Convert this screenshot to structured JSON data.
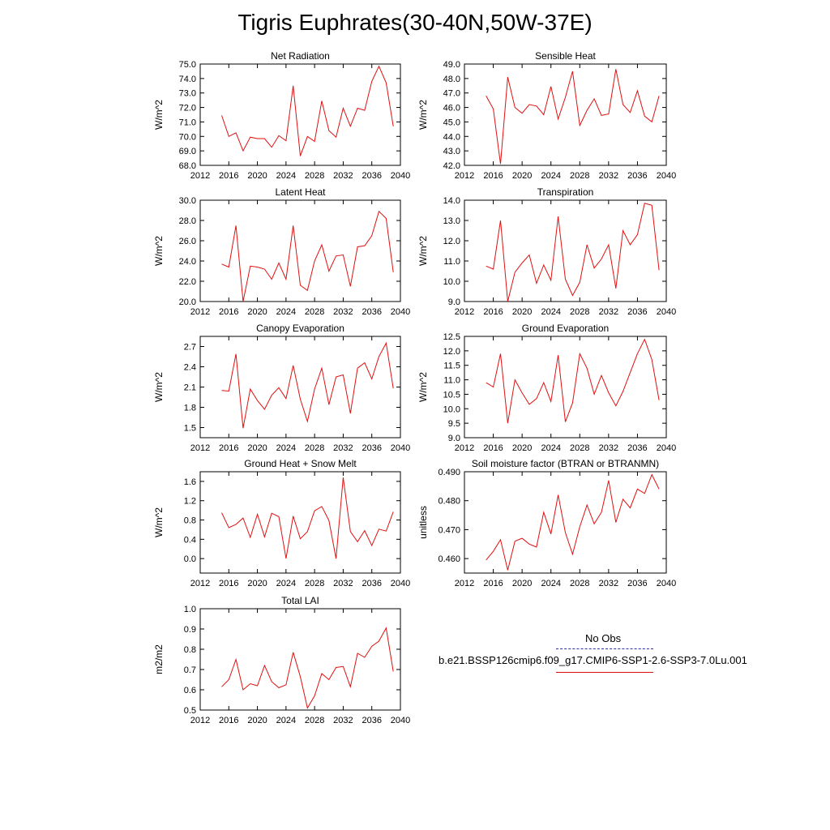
{
  "figure": {
    "title": "Tigris Euphrates(30-40N,50W-37E)"
  },
  "legend": {
    "obs_label": "No Obs",
    "obs_color": "#3030a0",
    "model_label": "b.e21.BSSP126cmip6.f09_g17.CMIP6-SSP1-2.6-SSP3-7.0Lu.001",
    "model_color": "#e01010"
  },
  "chart_data": [
    {
      "type": "line",
      "title": "Net Radiation",
      "ylabel": "W/m^2",
      "xlabel": "",
      "xlim": [
        2012,
        2040
      ],
      "ylim": [
        68,
        75
      ],
      "grid": false,
      "xticks": [
        2012,
        2016,
        2020,
        2024,
        2028,
        2032,
        2036,
        2040
      ],
      "yticks": [
        68.0,
        69.0,
        70.0,
        71.0,
        72.0,
        73.0,
        74.0,
        75.0
      ],
      "ydec": 1,
      "x": [
        2015,
        2016,
        2017,
        2018,
        2019,
        2020,
        2021,
        2022,
        2023,
        2024,
        2025,
        2026,
        2027,
        2028,
        2029,
        2030,
        2031,
        2032,
        2033,
        2034,
        2035,
        2036,
        2037,
        2038,
        2039
      ],
      "series": [
        {
          "color": "#e01010",
          "values": [
            71.45,
            70.0,
            70.25,
            69.0,
            69.95,
            69.85,
            69.85,
            69.25,
            70.05,
            69.7,
            73.5,
            68.65,
            70.0,
            69.65,
            72.45,
            70.4,
            69.95,
            71.95,
            70.7,
            71.95,
            71.8,
            73.8,
            74.85,
            73.7,
            70.7
          ]
        }
      ]
    },
    {
      "type": "line",
      "title": "Sensible Heat",
      "ylabel": "W/m^2",
      "xlabel": "",
      "xlim": [
        2012,
        2040
      ],
      "ylim": [
        42,
        49
      ],
      "grid": false,
      "xticks": [
        2012,
        2016,
        2020,
        2024,
        2028,
        2032,
        2036,
        2040
      ],
      "yticks": [
        42.0,
        43.0,
        44.0,
        45.0,
        46.0,
        47.0,
        48.0,
        49.0
      ],
      "ydec": 1,
      "x": [
        2015,
        2016,
        2017,
        2018,
        2019,
        2020,
        2021,
        2022,
        2023,
        2024,
        2025,
        2026,
        2027,
        2028,
        2029,
        2030,
        2031,
        2032,
        2033,
        2034,
        2035,
        2036,
        2037,
        2038,
        2039
      ],
      "series": [
        {
          "color": "#e01010",
          "values": [
            46.8,
            45.9,
            42.1,
            48.1,
            46.0,
            45.6,
            46.2,
            46.1,
            45.5,
            47.45,
            45.2,
            46.7,
            48.5,
            44.75,
            45.8,
            46.6,
            45.45,
            45.55,
            48.65,
            46.2,
            45.65,
            47.15,
            45.4,
            45.0,
            46.8
          ]
        }
      ]
    },
    {
      "type": "line",
      "title": "Latent Heat",
      "ylabel": "W/m^2",
      "xlabel": "",
      "xlim": [
        2012,
        2040
      ],
      "ylim": [
        20,
        30
      ],
      "grid": false,
      "xticks": [
        2012,
        2016,
        2020,
        2024,
        2028,
        2032,
        2036,
        2040
      ],
      "yticks": [
        20.0,
        22.0,
        24.0,
        26.0,
        28.0,
        30.0
      ],
      "ydec": 1,
      "x": [
        2015,
        2016,
        2017,
        2018,
        2019,
        2020,
        2021,
        2022,
        2023,
        2024,
        2025,
        2026,
        2027,
        2028,
        2029,
        2030,
        2031,
        2032,
        2033,
        2034,
        2035,
        2036,
        2037,
        2038,
        2039
      ],
      "series": [
        {
          "color": "#e01010",
          "values": [
            23.7,
            23.4,
            27.5,
            20.0,
            23.5,
            23.4,
            23.2,
            22.2,
            23.8,
            22.2,
            27.5,
            21.6,
            21.1,
            24.0,
            25.6,
            23.0,
            24.5,
            24.6,
            21.5,
            25.4,
            25.5,
            26.5,
            28.9,
            28.2,
            22.9
          ]
        }
      ]
    },
    {
      "type": "line",
      "title": "Transpiration",
      "ylabel": "W/m^2",
      "xlabel": "",
      "xlim": [
        2012,
        2040
      ],
      "ylim": [
        9,
        14
      ],
      "grid": false,
      "xticks": [
        2012,
        2016,
        2020,
        2024,
        2028,
        2032,
        2036,
        2040
      ],
      "yticks": [
        9.0,
        10.0,
        11.0,
        12.0,
        13.0,
        14.0
      ],
      "ydec": 1,
      "x": [
        2015,
        2016,
        2017,
        2018,
        2019,
        2020,
        2021,
        2022,
        2023,
        2024,
        2025,
        2026,
        2027,
        2028,
        2029,
        2030,
        2031,
        2032,
        2033,
        2034,
        2035,
        2036,
        2037,
        2038,
        2039
      ],
      "series": [
        {
          "color": "#e01010",
          "values": [
            10.75,
            10.6,
            13.0,
            9.0,
            10.45,
            10.9,
            11.3,
            9.9,
            10.8,
            10.05,
            13.2,
            10.1,
            9.3,
            9.95,
            11.8,
            10.65,
            11.1,
            11.8,
            9.65,
            12.5,
            11.8,
            12.3,
            13.85,
            13.75,
            10.55
          ]
        }
      ]
    },
    {
      "type": "line",
      "title": "Canopy Evaporation",
      "ylabel": "W/m^2",
      "xlabel": "",
      "xlim": [
        2012,
        2040
      ],
      "ylim": [
        1.35,
        2.85
      ],
      "grid": false,
      "xticks": [
        2012,
        2016,
        2020,
        2024,
        2028,
        2032,
        2036,
        2040
      ],
      "yticks": [
        1.5,
        1.8,
        2.1,
        2.4,
        2.7
      ],
      "ydec": 1,
      "x": [
        2015,
        2016,
        2017,
        2018,
        2019,
        2020,
        2021,
        2022,
        2023,
        2024,
        2025,
        2026,
        2027,
        2028,
        2029,
        2030,
        2031,
        2032,
        2033,
        2034,
        2035,
        2036,
        2037,
        2038,
        2039
      ],
      "series": [
        {
          "color": "#e01010",
          "values": [
            2.05,
            2.04,
            2.59,
            1.49,
            2.07,
            1.9,
            1.77,
            1.98,
            2.09,
            1.93,
            2.42,
            1.92,
            1.59,
            2.07,
            2.38,
            1.84,
            2.25,
            2.28,
            1.71,
            2.38,
            2.46,
            2.22,
            2.55,
            2.75,
            2.08
          ]
        }
      ]
    },
    {
      "type": "line",
      "title": "Ground Evaporation",
      "ylabel": "W/m^2",
      "xlabel": "",
      "xlim": [
        2012,
        2040
      ],
      "ylim": [
        9,
        12.5
      ],
      "grid": false,
      "xticks": [
        2012,
        2016,
        2020,
        2024,
        2028,
        2032,
        2036,
        2040
      ],
      "yticks": [
        9.0,
        9.5,
        10.0,
        10.5,
        11.0,
        11.5,
        12.0,
        12.5
      ],
      "ydec": 1,
      "x": [
        2015,
        2016,
        2017,
        2018,
        2019,
        2020,
        2021,
        2022,
        2023,
        2024,
        2025,
        2026,
        2027,
        2028,
        2029,
        2030,
        2031,
        2032,
        2033,
        2034,
        2035,
        2036,
        2037,
        2038,
        2039
      ],
      "series": [
        {
          "color": "#e01010",
          "values": [
            10.9,
            10.75,
            11.9,
            9.5,
            11.0,
            10.55,
            10.15,
            10.35,
            10.9,
            10.25,
            11.85,
            9.55,
            10.2,
            11.9,
            11.4,
            10.5,
            11.15,
            10.55,
            10.1,
            10.6,
            11.25,
            11.9,
            12.4,
            11.7,
            10.3
          ]
        }
      ]
    },
    {
      "type": "line",
      "title": "Ground Heat + Snow Melt",
      "ylabel": "W/m^2",
      "xlabel": "",
      "xlim": [
        2012,
        2040
      ],
      "ylim": [
        -0.3,
        1.8
      ],
      "grid": false,
      "xticks": [
        2012,
        2016,
        2020,
        2024,
        2028,
        2032,
        2036,
        2040
      ],
      "yticks": [
        0.0,
        0.4,
        0.8,
        1.2,
        1.6
      ],
      "ydec": 1,
      "x": [
        2015,
        2016,
        2017,
        2018,
        2019,
        2020,
        2021,
        2022,
        2023,
        2024,
        2025,
        2026,
        2027,
        2028,
        2029,
        2030,
        2031,
        2032,
        2033,
        2034,
        2035,
        2036,
        2037,
        2038,
        2039
      ],
      "series": [
        {
          "color": "#e01010",
          "values": [
            0.95,
            0.64,
            0.71,
            0.84,
            0.44,
            0.92,
            0.45,
            0.94,
            0.87,
            0.0,
            0.88,
            0.41,
            0.56,
            0.99,
            1.08,
            0.79,
            0.0,
            1.68,
            0.56,
            0.35,
            0.58,
            0.27,
            0.61,
            0.57,
            0.97
          ]
        }
      ]
    },
    {
      "type": "line",
      "title": "Soil moisture factor (BTRAN or BTRANMN)",
      "ylabel": "unitless",
      "xlabel": "",
      "xlim": [
        2012,
        2040
      ],
      "ylim": [
        0.455,
        0.49
      ],
      "grid": false,
      "xticks": [
        2012,
        2016,
        2020,
        2024,
        2028,
        2032,
        2036,
        2040
      ],
      "yticks": [
        0.46,
        0.47,
        0.48,
        0.49
      ],
      "ydec": 3,
      "x": [
        2015,
        2016,
        2017,
        2018,
        2019,
        2020,
        2021,
        2022,
        2023,
        2024,
        2025,
        2026,
        2027,
        2028,
        2029,
        2030,
        2031,
        2032,
        2033,
        2034,
        2035,
        2036,
        2037,
        2038,
        2039
      ],
      "series": [
        {
          "color": "#e01010",
          "values": [
            0.4595,
            0.4625,
            0.4665,
            0.456,
            0.466,
            0.467,
            0.465,
            0.464,
            0.476,
            0.4685,
            0.482,
            0.469,
            0.4615,
            0.471,
            0.4785,
            0.472,
            0.476,
            0.487,
            0.4725,
            0.4805,
            0.4775,
            0.484,
            0.4825,
            0.489,
            0.484
          ]
        }
      ]
    },
    {
      "type": "line",
      "title": "Total LAI",
      "ylabel": "m2/m2",
      "xlabel": "",
      "xlim": [
        2012,
        2040
      ],
      "ylim": [
        0.5,
        1.0
      ],
      "grid": false,
      "xticks": [
        2012,
        2016,
        2020,
        2024,
        2028,
        2032,
        2036,
        2040
      ],
      "yticks": [
        0.5,
        0.6,
        0.7,
        0.8,
        0.9,
        1.0
      ],
      "ydec": 1,
      "x": [
        2015,
        2016,
        2017,
        2018,
        2019,
        2020,
        2021,
        2022,
        2023,
        2024,
        2025,
        2026,
        2027,
        2028,
        2029,
        2030,
        2031,
        2032,
        2033,
        2034,
        2035,
        2036,
        2037,
        2038,
        2039
      ],
      "series": [
        {
          "color": "#e01010",
          "values": [
            0.615,
            0.65,
            0.75,
            0.6,
            0.63,
            0.62,
            0.72,
            0.64,
            0.61,
            0.625,
            0.785,
            0.665,
            0.51,
            0.57,
            0.68,
            0.65,
            0.71,
            0.715,
            0.615,
            0.78,
            0.76,
            0.815,
            0.84,
            0.905,
            0.69
          ]
        }
      ]
    }
  ]
}
